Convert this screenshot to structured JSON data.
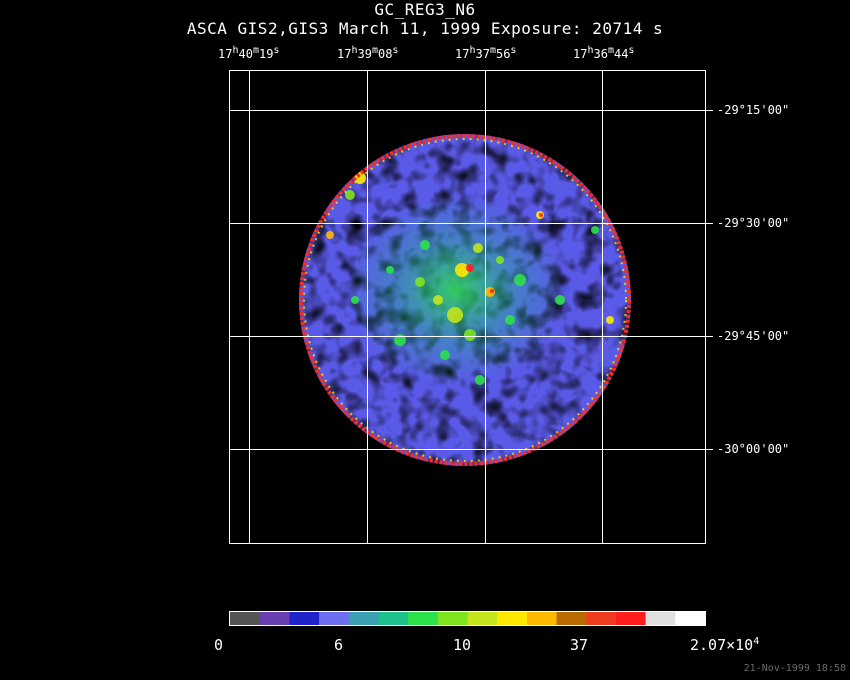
{
  "title": "GC_REG3_N6",
  "subtitle": "ASCA GIS2,GIS3 March 11, 1999 Exposure: 20714 s",
  "ra_labels": [
    {
      "h": "17",
      "m": "40",
      "s": "19"
    },
    {
      "h": "17",
      "m": "39",
      "s": "08"
    },
    {
      "h": "17",
      "m": "37",
      "s": "56"
    },
    {
      "h": "17",
      "m": "36",
      "s": "44"
    }
  ],
  "dec_labels": [
    "-29°15'00\"",
    "-29°30'00\"",
    "-29°45'00\"",
    "-30°00'00\""
  ],
  "colorbar": {
    "colors": [
      "#555555",
      "#6a3fb0",
      "#1e24c8",
      "#6e6ef0",
      "#3aa0b0",
      "#1ec08c",
      "#2ce04a",
      "#7ee41e",
      "#c4e41e",
      "#ffe800",
      "#ffb800",
      "#b86a00",
      "#f03c1e",
      "#ff1e1e",
      "#e0e0e0",
      "#ffffff"
    ],
    "labels": [
      "0",
      "6",
      "10",
      "37",
      "2.07×10"
    ],
    "exponent": "4"
  },
  "timestamp": "21-Nov-1999 18:58"
}
